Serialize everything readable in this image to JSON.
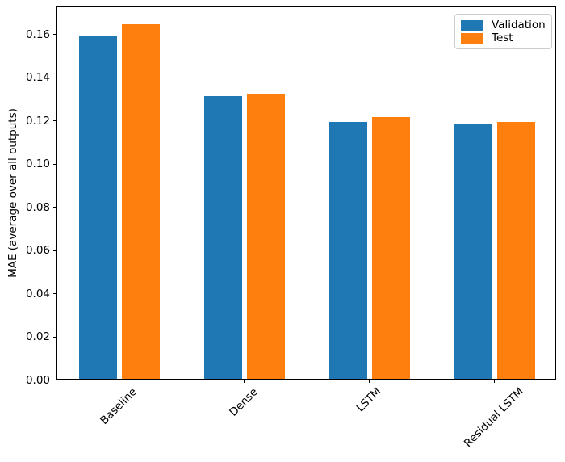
{
  "chart_data": {
    "type": "bar",
    "title": "",
    "xlabel": "",
    "ylabel": "MAE (average over all outputs)",
    "categories": [
      "Baseline",
      "Dense",
      "LSTM",
      "Residual LSTM"
    ],
    "series": [
      {
        "name": "Validation",
        "color": "#1f77b4",
        "values": [
          0.159,
          0.131,
          0.119,
          0.118
        ]
      },
      {
        "name": "Test",
        "color": "#ff7f0e",
        "values": [
          0.164,
          0.132,
          0.121,
          0.119
        ]
      }
    ],
    "ylim": [
      0,
      0.173
    ],
    "yticks": [
      0.0,
      0.02,
      0.04,
      0.06,
      0.08,
      0.1,
      0.12,
      0.14,
      0.16
    ],
    "ytick_label_format": "2-decimals",
    "xtick_rotation_deg": 45,
    "grid": false,
    "legend": {
      "position": "upper right",
      "entries": [
        "Validation",
        "Test"
      ]
    },
    "axis_color": "#000000",
    "background_color": "#ffffff"
  }
}
